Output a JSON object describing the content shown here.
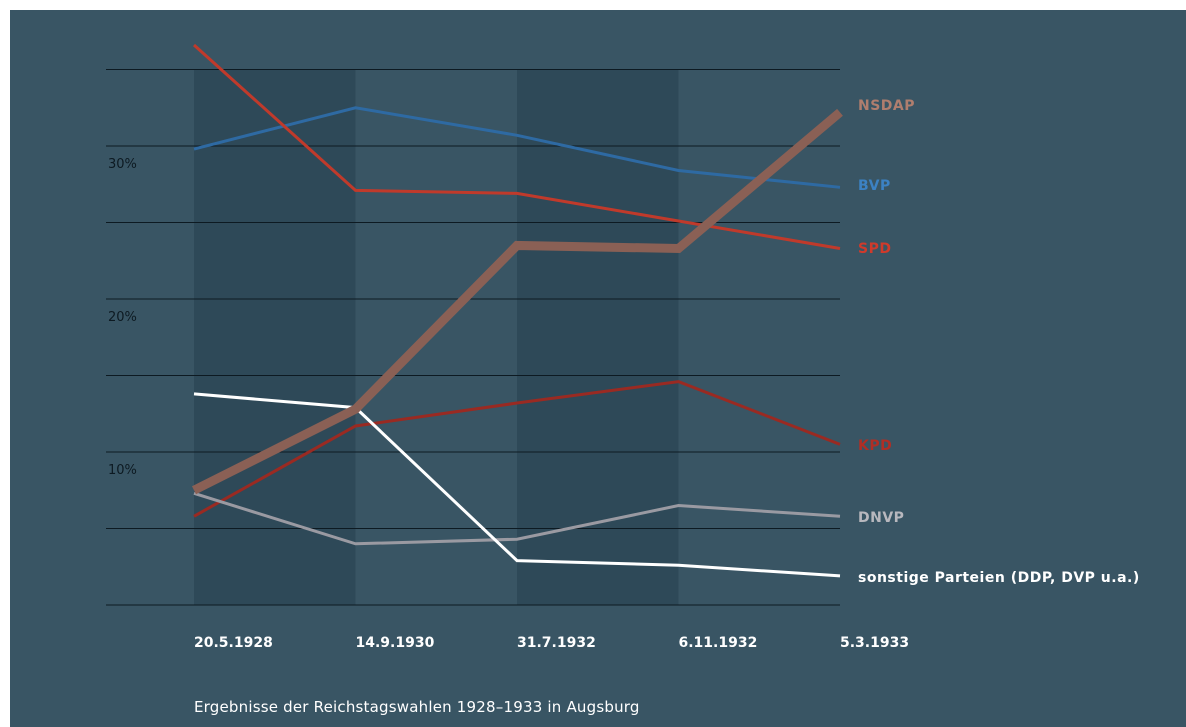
{
  "chart_data": {
    "type": "line",
    "title": "Ergebnisse der Reichstagswahlen 1928–1933 in Augsburg",
    "categories": [
      "20.5.1928",
      "14.9.1930",
      "31.7.1932",
      "6.11.1932",
      "5.3.1933"
    ],
    "ylim": [
      0,
      35
    ],
    "yticks": [
      {
        "value": 10,
        "label": "10%"
      },
      {
        "value": 20,
        "label": "20%"
      },
      {
        "value": 30,
        "label": "30%"
      }
    ],
    "grid": true,
    "legend": "right, labels at line ends",
    "series": [
      {
        "name": "NSDAP",
        "values": [
          7.5,
          12.8,
          23.5,
          23.3,
          32.2
        ],
        "color": "#8a6055",
        "width": 9
      },
      {
        "name": "BVP",
        "values": [
          29.8,
          32.5,
          30.7,
          28.4,
          27.3
        ],
        "color": "#2e6aa3",
        "width": 3
      },
      {
        "name": "SPD",
        "values": [
          36.6,
          27.1,
          26.9,
          25.1,
          23.3
        ],
        "color": "#c03a2b",
        "width": 3
      },
      {
        "name": "KPD",
        "values": [
          5.8,
          11.7,
          13.2,
          14.6,
          10.5
        ],
        "color": "#9a2a22",
        "width": 3
      },
      {
        "name": "DNVP",
        "values": [
          7.3,
          4.0,
          4.3,
          6.5,
          5.8
        ],
        "color": "#9a9aa2",
        "width": 3
      },
      {
        "name": "sonstige Parteien (DDP, DVP u.a.)",
        "values": [
          13.8,
          12.9,
          2.9,
          2.6,
          1.9
        ],
        "color": "#ffffff",
        "width": 3
      }
    ],
    "label_colors": {
      "NSDAP": "#b07e6e",
      "BVP": "#3c82c4",
      "SPD": "#d03a2b",
      "KPD": "#b02e25",
      "DNVP": "#b8b8be",
      "sonstige Parteien (DDP, DVP u.a.)": "#ffffff"
    },
    "background": "#395564",
    "shade_color": "#2b4554"
  }
}
